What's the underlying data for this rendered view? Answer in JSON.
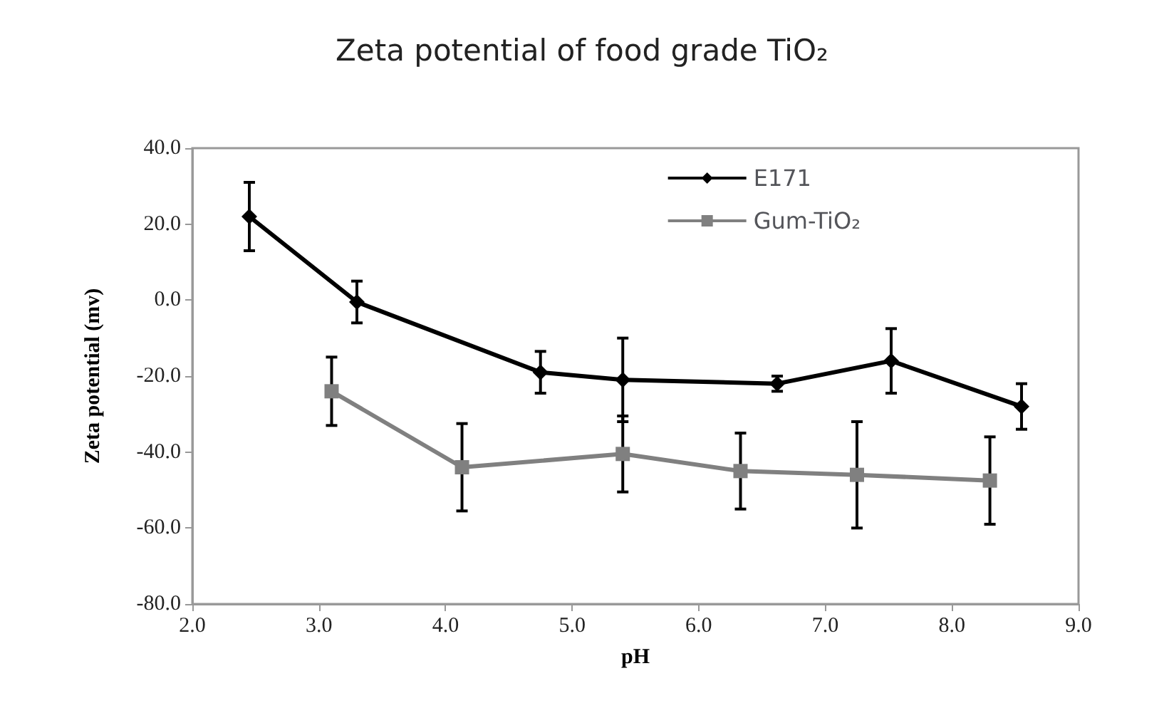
{
  "chart_data": {
    "type": "line",
    "title": "Zeta potential of food grade TiO₂",
    "xlabel": "pH",
    "ylabel": "Zeta potential (mv)",
    "xlim": [
      2,
      9
    ],
    "xticks": [
      {
        "value": 2,
        "label": "2.0"
      },
      {
        "value": 3,
        "label": "3.0"
      },
      {
        "value": 4,
        "label": "4.0"
      },
      {
        "value": 5,
        "label": "5.0"
      },
      {
        "value": 6,
        "label": "6.0"
      },
      {
        "value": 7,
        "label": "7.0"
      },
      {
        "value": 8,
        "label": "8.0"
      },
      {
        "value": 9,
        "label": "9.0"
      }
    ],
    "ylim": [
      -80,
      40
    ],
    "yticks": [
      {
        "value": -80,
        "label": "-80.0"
      },
      {
        "value": -60,
        "label": "-60.0"
      },
      {
        "value": -40,
        "label": "-40.0"
      },
      {
        "value": -20,
        "label": "-20.0"
      },
      {
        "value": 0,
        "label": "0.0"
      },
      {
        "value": 20,
        "label": "20.0"
      },
      {
        "value": 40,
        "label": "40.0"
      }
    ],
    "grid": false,
    "legend": "top right",
    "series": [
      {
        "name": "E171",
        "color": "#000000",
        "marker": "diamond",
        "x": [
          2.45,
          3.3,
          4.75,
          5.4,
          6.62,
          7.52,
          8.55
        ],
        "values": [
          22,
          -0.5,
          -19,
          -21,
          -22,
          -16,
          -28
        ],
        "errors": [
          9,
          5.5,
          5.5,
          11,
          2,
          8.5,
          6
        ]
      },
      {
        "name": "Gum-TiO₂",
        "color": "#808080",
        "marker": "square",
        "x": [
          3.1,
          4.13,
          5.4,
          6.33,
          7.25,
          8.3
        ],
        "values": [
          -24,
          -44,
          -40.5,
          -45,
          -46,
          -47.5
        ],
        "errors": [
          9,
          11.5,
          10,
          10,
          14,
          11.5
        ]
      }
    ]
  }
}
